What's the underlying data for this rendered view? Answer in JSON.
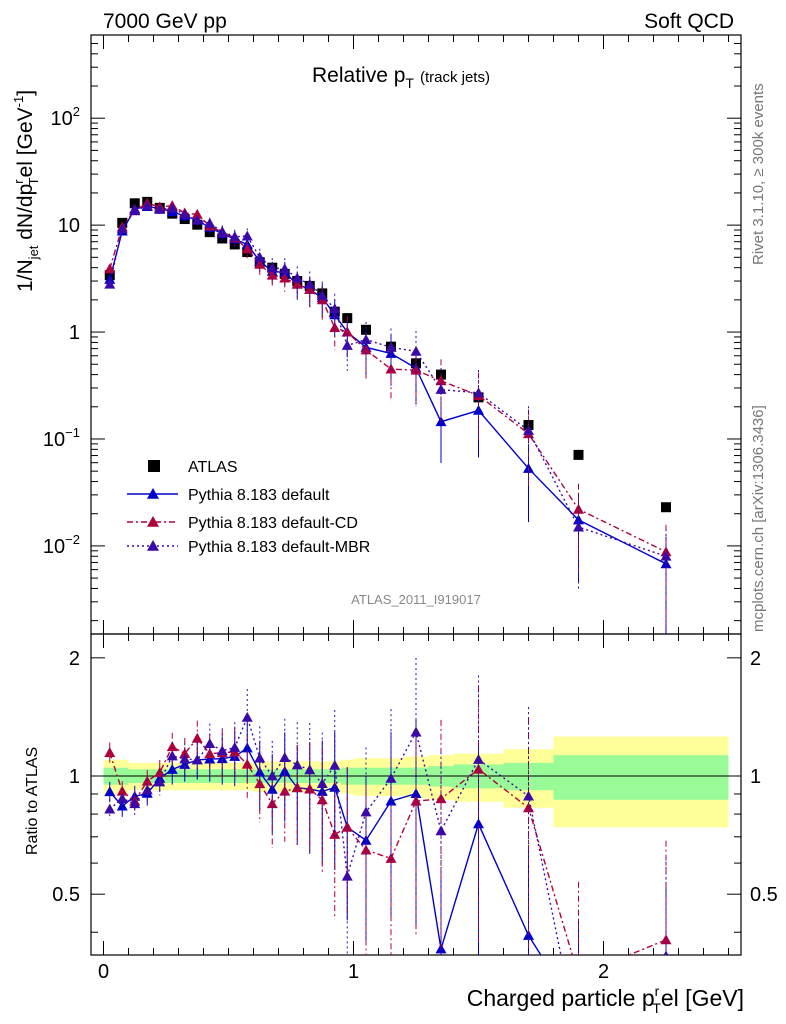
{
  "header": {
    "energy_label": "7000 GeV pp",
    "process_label": "Soft QCD"
  },
  "side_labels": {
    "rivet": "Rivet 3.1.10, ≥ 300k events",
    "mcplots": "mcplots.cern.ch [arXiv:1306.3436]"
  },
  "chart_data": {
    "type": "scatter",
    "title": "Relative p",
    "title_sub": "T",
    "title_suffix": "(track jets)",
    "analysis_id": "ATLAS_2011_I919017",
    "ylabel_main": "1/N",
    "ylabel_main_sub": "jet",
    "ylabel_main_rest": " dN/dp",
    "ylabel_main_sup": "r",
    "ylabel_main_sub2": "T",
    "ylabel_main_end": "el [GeV",
    "ylabel_main_sup2": "-1",
    "ylabel_main_close": "]",
    "ylabel_ratio": "Ratio to ATLAS",
    "xlabel": "Charged particle p",
    "xlabel_sup": "r",
    "xlabel_sub": "T",
    "xlabel_rest": "el [GeV]",
    "x_range": [
      -0.05,
      2.55
    ],
    "y_range_main": [
      0.0015,
      600
    ],
    "y_range_ratio": [
      0.35,
      2.3
    ],
    "x_ticks": [
      "0",
      "1",
      "2"
    ],
    "y_ticks_main": [
      {
        "base": "10",
        "exp": "2"
      },
      {
        "base": "10",
        "exp": ""
      },
      {
        "base": "1",
        "exp": ""
      },
      {
        "base": "10",
        "exp": "−1"
      },
      {
        "base": "10",
        "exp": "−2"
      }
    ],
    "y_ticks_ratio": [
      "2",
      "1",
      "0.5"
    ],
    "x": [
      0.025,
      0.075,
      0.125,
      0.175,
      0.225,
      0.275,
      0.325,
      0.375,
      0.425,
      0.475,
      0.525,
      0.575,
      0.625,
      0.675,
      0.725,
      0.775,
      0.825,
      0.875,
      0.925,
      0.975,
      1.05,
      1.15,
      1.25,
      1.35,
      1.5,
      1.7,
      1.9,
      2.25
    ],
    "series": [
      {
        "name": "ATLAS",
        "color": "#000000",
        "style": "data",
        "values": [
          3.4,
          10.5,
          16.0,
          16.5,
          14.5,
          12.8,
          11.4,
          10.1,
          8.6,
          7.5,
          6.6,
          5.6,
          4.5,
          4.0,
          3.5,
          3.0,
          2.7,
          2.3,
          1.55,
          1.35,
          1.05,
          0.73,
          0.51,
          0.4,
          0.245,
          0.135,
          0.071,
          0.023
        ]
      },
      {
        "name": "Pythia 8.183 default",
        "color": "#0000cc",
        "style": "solid",
        "values": [
          3.1,
          8.8,
          14.2,
          14.9,
          14.3,
          13.3,
          12.2,
          11.1,
          9.5,
          8.3,
          7.4,
          6.6,
          4.6,
          3.7,
          3.6,
          2.8,
          2.5,
          2.1,
          1.45,
          1.0,
          0.72,
          0.63,
          0.46,
          0.145,
          0.185,
          0.053,
          0.0175,
          0.0068
        ]
      },
      {
        "name": "Pythia 8.183 default-CD",
        "color": "#b0003c",
        "style": "dashdot",
        "values": [
          3.9,
          9.6,
          13.8,
          16.0,
          14.8,
          15.2,
          13.0,
          12.6,
          9.8,
          8.6,
          7.6,
          6.0,
          4.3,
          3.4,
          3.2,
          2.8,
          2.5,
          2.0,
          1.1,
          1.0,
          0.68,
          0.45,
          0.44,
          0.35,
          0.255,
          0.112,
          0.022,
          0.0088
        ]
      },
      {
        "name": "Pythia 8.183 default-MBR",
        "color": "#3a0aa8",
        "style": "dotted",
        "values": [
          2.8,
          9.2,
          13.6,
          15.2,
          14.0,
          14.4,
          12.6,
          11.1,
          10.4,
          8.7,
          7.8,
          7.9,
          5.0,
          4.0,
          3.9,
          3.2,
          2.8,
          2.2,
          1.65,
          0.75,
          0.85,
          0.72,
          0.66,
          0.29,
          0.27,
          0.12,
          0.015,
          0.008
        ]
      }
    ],
    "ratio_bands": [
      {
        "x": [
          0.0,
          0.05
        ],
        "inner": [
          0.95,
          1.05
        ],
        "outer": [
          0.9,
          1.1
        ]
      },
      {
        "x": [
          0.05,
          0.1
        ],
        "inner": [
          0.95,
          1.05
        ],
        "outer": [
          0.9,
          1.1
        ]
      },
      {
        "x": [
          0.1,
          0.15
        ],
        "inner": [
          0.96,
          1.04
        ],
        "outer": [
          0.92,
          1.08
        ]
      },
      {
        "x": [
          0.15,
          0.2
        ],
        "inner": [
          0.96,
          1.04
        ],
        "outer": [
          0.92,
          1.08
        ]
      },
      {
        "x": [
          0.2,
          0.25
        ],
        "inner": [
          0.96,
          1.04
        ],
        "outer": [
          0.92,
          1.08
        ]
      },
      {
        "x": [
          0.25,
          0.3
        ],
        "inner": [
          0.96,
          1.04
        ],
        "outer": [
          0.92,
          1.08
        ]
      },
      {
        "x": [
          0.3,
          0.35
        ],
        "inner": [
          0.96,
          1.04
        ],
        "outer": [
          0.92,
          1.08
        ]
      },
      {
        "x": [
          0.35,
          0.4
        ],
        "inner": [
          0.96,
          1.04
        ],
        "outer": [
          0.92,
          1.08
        ]
      },
      {
        "x": [
          0.4,
          0.45
        ],
        "inner": [
          0.96,
          1.04
        ],
        "outer": [
          0.92,
          1.08
        ]
      },
      {
        "x": [
          0.45,
          0.5
        ],
        "inner": [
          0.96,
          1.04
        ],
        "outer": [
          0.92,
          1.08
        ]
      },
      {
        "x": [
          0.5,
          0.55
        ],
        "inner": [
          0.96,
          1.04
        ],
        "outer": [
          0.92,
          1.08
        ]
      },
      {
        "x": [
          0.55,
          0.6
        ],
        "inner": [
          0.96,
          1.04
        ],
        "outer": [
          0.92,
          1.08
        ]
      },
      {
        "x": [
          0.6,
          0.65
        ],
        "inner": [
          0.96,
          1.04
        ],
        "outer": [
          0.91,
          1.09
        ]
      },
      {
        "x": [
          0.65,
          0.7
        ],
        "inner": [
          0.96,
          1.04
        ],
        "outer": [
          0.91,
          1.09
        ]
      },
      {
        "x": [
          0.7,
          0.75
        ],
        "inner": [
          0.96,
          1.04
        ],
        "outer": [
          0.91,
          1.09
        ]
      },
      {
        "x": [
          0.75,
          0.8
        ],
        "inner": [
          0.96,
          1.04
        ],
        "outer": [
          0.91,
          1.09
        ]
      },
      {
        "x": [
          0.8,
          0.85
        ],
        "inner": [
          0.96,
          1.04
        ],
        "outer": [
          0.91,
          1.09
        ]
      },
      {
        "x": [
          0.85,
          0.9
        ],
        "inner": [
          0.96,
          1.04
        ],
        "outer": [
          0.91,
          1.09
        ]
      },
      {
        "x": [
          0.9,
          0.95
        ],
        "inner": [
          0.96,
          1.04
        ],
        "outer": [
          0.91,
          1.09
        ]
      },
      {
        "x": [
          0.95,
          1.0
        ],
        "inner": [
          0.95,
          1.05
        ],
        "outer": [
          0.9,
          1.1
        ]
      },
      {
        "x": [
          1.0,
          1.1
        ],
        "inner": [
          0.95,
          1.05
        ],
        "outer": [
          0.89,
          1.11
        ]
      },
      {
        "x": [
          1.1,
          1.2
        ],
        "inner": [
          0.95,
          1.05
        ],
        "outer": [
          0.89,
          1.11
        ]
      },
      {
        "x": [
          1.2,
          1.3
        ],
        "inner": [
          0.95,
          1.05
        ],
        "outer": [
          0.88,
          1.12
        ]
      },
      {
        "x": [
          1.3,
          1.4
        ],
        "inner": [
          0.94,
          1.06
        ],
        "outer": [
          0.87,
          1.13
        ]
      },
      {
        "x": [
          1.4,
          1.6
        ],
        "inner": [
          0.93,
          1.07
        ],
        "outer": [
          0.86,
          1.14
        ]
      },
      {
        "x": [
          1.6,
          1.8
        ],
        "inner": [
          0.92,
          1.08
        ],
        "outer": [
          0.83,
          1.17
        ]
      },
      {
        "x": [
          1.8,
          2.0
        ],
        "inner": [
          0.87,
          1.13
        ],
        "outer": [
          0.74,
          1.26
        ]
      },
      {
        "x": [
          2.0,
          2.5
        ],
        "inner": [
          0.87,
          1.13
        ],
        "outer": [
          0.74,
          1.26
        ]
      }
    ],
    "band_colors": {
      "inner": "#98fb98",
      "outer": "#ffff99"
    }
  }
}
